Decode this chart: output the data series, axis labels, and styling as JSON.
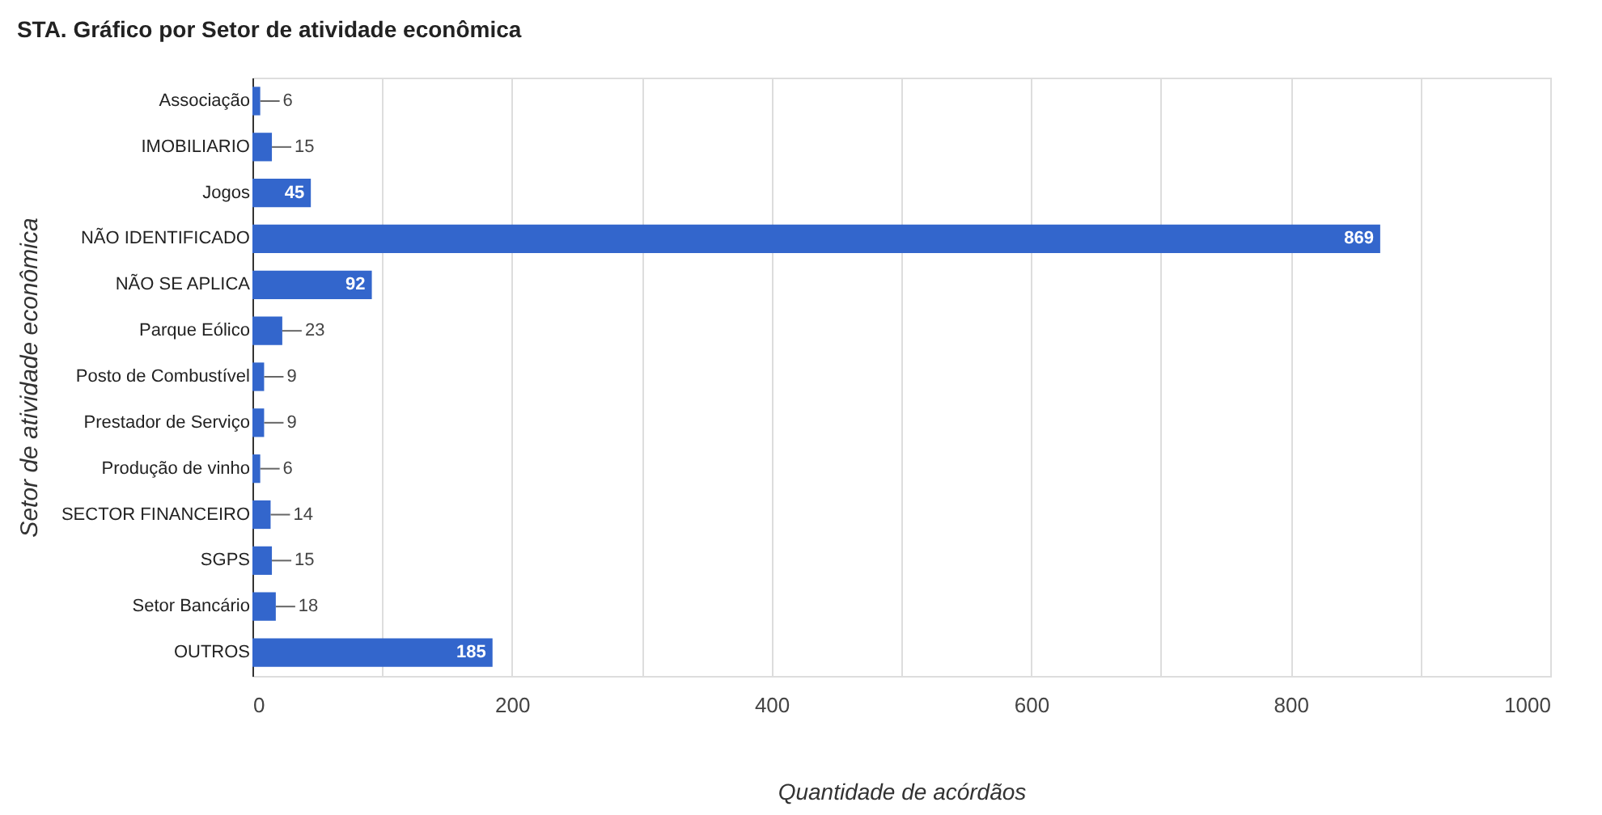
{
  "chart_data": {
    "type": "bar",
    "orientation": "horizontal",
    "title": "STA. Gráfico por Setor de atividade econômica",
    "xlabel": "Quantidade de acórdãos",
    "ylabel": "Setor de atividade econômica",
    "categories": [
      "Associação",
      "IMOBILIARIO",
      "Jogos",
      "NÃO IDENTIFICADO",
      "NÃO SE APLICA",
      "Parque Eólico",
      "Posto de Combustível",
      "Prestador de Serviço",
      "Produção de vinho",
      "SECTOR FINANCEIRO",
      "SGPS",
      "Setor Bancário",
      "OUTROS"
    ],
    "values": [
      6,
      15,
      45,
      869,
      92,
      23,
      9,
      9,
      6,
      14,
      15,
      18,
      185
    ],
    "color": "#3366cc",
    "data_labels": true,
    "xlim": [
      0,
      1000
    ],
    "xticks": [
      0,
      {
        "value": 100,
        "label": null
      },
      200,
      {
        "value": 300,
        "label": null
      },
      400,
      {
        "value": 500,
        "label": null
      },
      600,
      {
        "value": 700,
        "label": null
      },
      800,
      {
        "value": 900,
        "label": null
      },
      1000
    ],
    "grid": "x"
  }
}
